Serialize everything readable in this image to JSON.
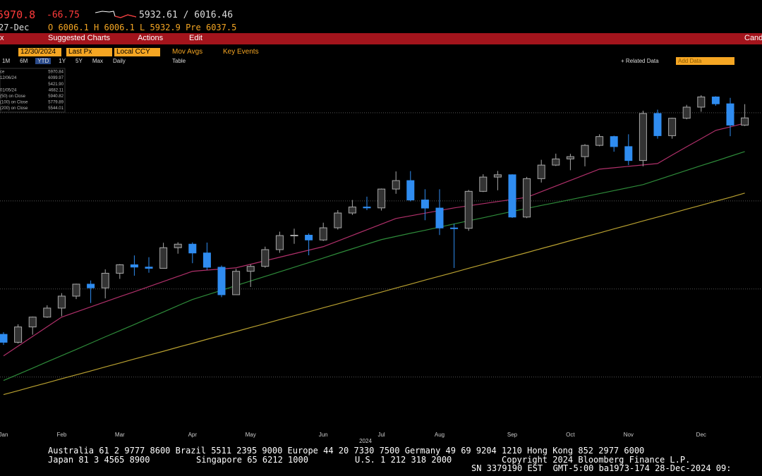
{
  "header": {
    "last": "5970.8",
    "change": "-66.75",
    "range": "5932.61 / 6016.46",
    "date": "27-Dec",
    "ohlc": "O 6006.1 H 6006.1 L 5932.9 Pre 6037.5"
  },
  "menu": {
    "left": "x",
    "suggested": "Suggested Charts",
    "actions": "Actions",
    "edit": "Edit",
    "right": "Cand"
  },
  "controls": {
    "date": "12/30/2024",
    "field": "Last Px",
    "currency": "Local CCY",
    "mov_avgs": "Mov Avgs",
    "key_events": "Key Events"
  },
  "periods": {
    "items": [
      "1M",
      "6M",
      "YTD",
      "1Y",
      "5Y",
      "Max",
      "Daily"
    ],
    "table": "Table",
    "related": "+ Related Data",
    "add": "Add Data"
  },
  "chart_data": {
    "type": "candlestick",
    "legend": [
      {
        "label": "ce",
        "value": "5970.84"
      },
      {
        "label": "12/06/24",
        "value": "6099.97"
      },
      {
        "label": "",
        "value": "5421.90"
      },
      {
        "label": "01/05/24",
        "value": "4682.11"
      },
      {
        "label": "(50) on Close",
        "value": "5940.82"
      },
      {
        "label": "(100) on Close",
        "value": "5779.89"
      },
      {
        "label": "(200) on Close",
        "value": "5544.01"
      }
    ],
    "year_label": "2024",
    "categories": [
      "Jan",
      null,
      null,
      null,
      "Feb",
      null,
      null,
      null,
      "Mar",
      null,
      null,
      null,
      null,
      "Apr",
      null,
      null,
      null,
      "May",
      null,
      null,
      null,
      null,
      "Jun",
      null,
      null,
      null,
      "Jul",
      null,
      null,
      null,
      "Aug",
      null,
      null,
      null,
      null,
      "Sep",
      null,
      null,
      null,
      "Oct",
      null,
      null,
      null,
      "Nov",
      null,
      null,
      null,
      null,
      "Dec",
      null,
      null,
      null
    ],
    "ohlc": [
      [
        4742,
        4754,
        4682,
        4697
      ],
      [
        4697,
        4799,
        4690,
        4784
      ],
      [
        4784,
        4843,
        4740,
        4840
      ],
      [
        4840,
        4907,
        4836,
        4891
      ],
      [
        4891,
        4976,
        4845,
        4959
      ],
      [
        4959,
        5030,
        4942,
        5027
      ],
      [
        5027,
        5048,
        4920,
        5006
      ],
      [
        5006,
        5111,
        4946,
        5089
      ],
      [
        5089,
        5141,
        5057,
        5137
      ],
      [
        5137,
        5190,
        5075,
        5124
      ],
      [
        5124,
        5180,
        5092,
        5117
      ],
      [
        5117,
        5262,
        5115,
        5234
      ],
      [
        5234,
        5265,
        5200,
        5254
      ],
      [
        5254,
        5264,
        5146,
        5204
      ],
      [
        5204,
        5263,
        5107,
        5123
      ],
      [
        5123,
        5133,
        4953,
        4967
      ],
      [
        4967,
        5114,
        4968,
        5100
      ],
      [
        5100,
        5139,
        5011,
        5128
      ],
      [
        5128,
        5240,
        5120,
        5223
      ],
      [
        5223,
        5325,
        5205,
        5303
      ],
      [
        5303,
        5342,
        5256,
        5305
      ],
      [
        5305,
        5315,
        5191,
        5278
      ],
      [
        5278,
        5376,
        5272,
        5347
      ],
      [
        5347,
        5447,
        5337,
        5431
      ],
      [
        5431,
        5505,
        5420,
        5465
      ],
      [
        5465,
        5524,
        5447,
        5460
      ],
      [
        5460,
        5570,
        5445,
        5567
      ],
      [
        5567,
        5667,
        5540,
        5615
      ],
      [
        5615,
        5669,
        5497,
        5505
      ],
      [
        5505,
        5566,
        5390,
        5459
      ],
      [
        5459,
        5566,
        5306,
        5346
      ],
      [
        5346,
        5370,
        5119,
        5344
      ],
      [
        5344,
        5562,
        5330,
        5554
      ],
      [
        5554,
        5651,
        5550,
        5635
      ],
      [
        5635,
        5670,
        5560,
        5648
      ],
      [
        5648,
        5651,
        5403,
        5408
      ],
      [
        5408,
        5636,
        5402,
        5626
      ],
      [
        5626,
        5733,
        5604,
        5703
      ],
      [
        5703,
        5768,
        5698,
        5738
      ],
      [
        5738,
        5767,
        5674,
        5751
      ],
      [
        5751,
        5822,
        5696,
        5815
      ],
      [
        5815,
        5878,
        5810,
        5865
      ],
      [
        5865,
        5870,
        5779,
        5808
      ],
      [
        5808,
        5878,
        5703,
        5729
      ],
      [
        5729,
        6012,
        5696,
        5996
      ],
      [
        5996,
        6018,
        5853,
        5870
      ],
      [
        5870,
        5972,
        5853,
        5969
      ],
      [
        5969,
        6045,
        5963,
        6032
      ],
      [
        6032,
        6100,
        6006,
        6090
      ],
      [
        6090,
        6094,
        6040,
        6051
      ],
      [
        6051,
        6085,
        5867,
        5930
      ],
      [
        5930,
        6049,
        5925,
        5971
      ]
    ],
    "up_color": "#a8a8a8",
    "down_color": "#2f8cf0",
    "series": [
      {
        "color": "#b0306a",
        "values": [
          4620,
          4675,
          4730,
          4785,
          4840,
          4869,
          4898,
          4927,
          4956,
          4984,
          5013,
          5042,
          5071,
          5100,
          5107,
          5113,
          5120,
          5140,
          5160,
          5180,
          5200,
          5220,
          5240,
          5272,
          5304,
          5336,
          5368,
          5400,
          5415,
          5430,
          5445,
          5460,
          5472,
          5484,
          5496,
          5508,
          5520,
          5552,
          5584,
          5616,
          5648,
          5680,
          5688,
          5696,
          5704,
          5712,
          5760,
          5807,
          5853,
          5900,
          5920,
          5941
        ]
      },
      {
        "color": "#2e8b3a",
        "values": [
          4480,
          4515,
          4550,
          4586,
          4621,
          4656,
          4692,
          4728,
          4763,
          4798,
          4834,
          4869,
          4905,
          4940,
          4966,
          4992,
          5019,
          5045,
          5071,
          5097,
          5123,
          5149,
          5175,
          5202,
          5228,
          5254,
          5280,
          5298,
          5316,
          5333,
          5351,
          5369,
          5387,
          5404,
          5422,
          5440,
          5457,
          5474,
          5490,
          5507,
          5524,
          5541,
          5558,
          5575,
          5592,
          5619,
          5646,
          5673,
          5700,
          5726,
          5753,
          5780
        ]
      },
      {
        "color": "#b8a030",
        "values": [
          4400,
          4422,
          4445,
          4467,
          4490,
          4512,
          4534,
          4557,
          4579,
          4602,
          4624,
          4646,
          4669,
          4691,
          4714,
          4736,
          4758,
          4781,
          4803,
          4826,
          4848,
          4870,
          4893,
          4915,
          4938,
          4960,
          4982,
          5005,
          5027,
          5050,
          5072,
          5094,
          5117,
          5139,
          5162,
          5184,
          5206,
          5229,
          5251,
          5274,
          5296,
          5318,
          5341,
          5363,
          5386,
          5408,
          5430,
          5453,
          5475,
          5498,
          5520,
          5544
        ]
      }
    ],
    "ylim": [
      4190,
      6260
    ],
    "gridlines": [
      4500,
      5000,
      5500,
      6000
    ],
    "grid": true
  },
  "footer": {
    "line1": "Australia 61 2 9777 8600 Brazil 5511 2395 9000 Europe 44 20 7330 7500 Germany 49 69 9204 1210 Hong Kong 852 2977 6000",
    "line2a": "Japan 81 3 4565 8900",
    "line2b": "Singapore 65 6212 1000",
    "line2c": "U.S. 1 212 318 2000",
    "line2d": "Copyright 2024 Bloomberg Finance L.P.",
    "line3": "SN 3379190 EST  GMT-5:00 ba1973-174 28-Dec-2024 09:"
  }
}
